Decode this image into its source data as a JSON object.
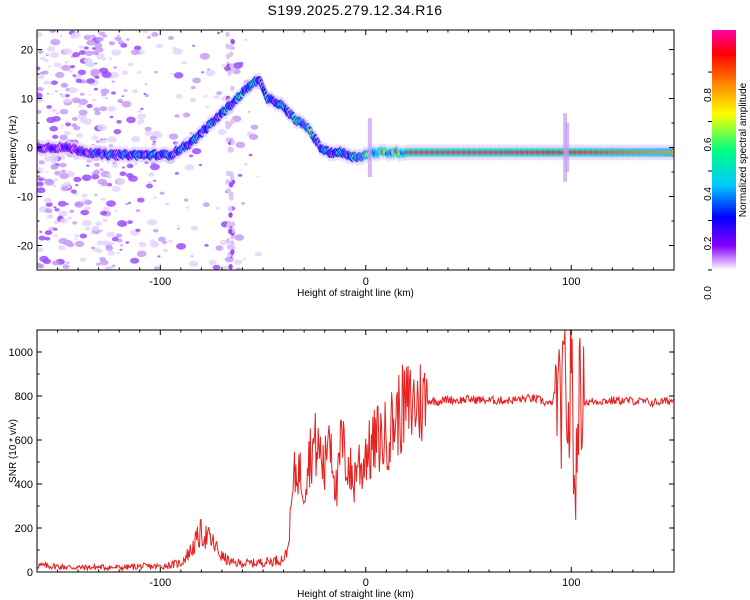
{
  "title": "S199.2025.279.12.34.R16",
  "colors": {
    "snr_line": "#e8201e",
    "spectrum_low": "#e6d9f7",
    "colormap": [
      "#ffffff",
      "#8800ff",
      "#0000ff",
      "#00c8ff",
      "#00ff80",
      "#ffff00",
      "#ff8000",
      "#ff0000",
      "#ff00aa"
    ]
  },
  "chart_data": [
    {
      "type": "heatmap",
      "xlabel": "Height of straight line (km)",
      "ylabel": "Frequency (Hz)",
      "xlim": [
        -160,
        150
      ],
      "ylim": [
        -25,
        24
      ],
      "xticks": [
        -100,
        0,
        100
      ],
      "yticks": [
        20,
        10,
        0,
        -10,
        -20
      ],
      "colorbar": {
        "label": "Normalized spectral amplitude",
        "range": [
          0,
          0.97
        ],
        "ticks": [
          0.0,
          0.2,
          0.4,
          0.6,
          0.8
        ]
      },
      "ridge": {
        "x": [
          -160,
          -145,
          -135,
          -125,
          -115,
          -105,
          -95,
          -85,
          -75,
          -65,
          -58,
          -52,
          -48,
          -42,
          -35,
          -28,
          -22,
          -18,
          -12,
          -5,
          5,
          20,
          60,
          100,
          150
        ],
        "y": [
          0,
          0,
          -1,
          -1.5,
          -1.5,
          -1.5,
          -1.5,
          1,
          5,
          9,
          12,
          14,
          10,
          9,
          6,
          4,
          0,
          -1,
          -1,
          -2,
          -1,
          -1,
          -1,
          -1,
          -1
        ],
        "amplitude": [
          0.2,
          0.25,
          0.3,
          0.4,
          0.4,
          0.45,
          0.4,
          0.45,
          0.45,
          0.5,
          0.55,
          0.5,
          0.45,
          0.5,
          0.55,
          0.6,
          0.5,
          0.45,
          0.5,
          0.55,
          0.8,
          0.95,
          0.95,
          0.9,
          0.75
        ]
      }
    },
    {
      "type": "line",
      "xlabel": "Height of straight line (km)",
      "ylabel": "SNR (10 * v/v)",
      "xlim": [
        -160,
        150
      ],
      "ylim": [
        0,
        1100
      ],
      "xticks": [
        -100,
        0,
        100
      ],
      "yticks": [
        0,
        200,
        400,
        600,
        800,
        1000
      ],
      "series": [
        {
          "x": [
            -160,
            -150,
            -140,
            -130,
            -120,
            -110,
            -100,
            -90,
            -85,
            -80,
            -75,
            -70,
            -65,
            -60,
            -55,
            -50,
            -45,
            -40,
            -38,
            -35,
            -33,
            -30,
            -28,
            -25,
            -22,
            -20,
            -18,
            -16,
            -14,
            -12,
            -10,
            -8,
            -6,
            -4,
            -2,
            0,
            2,
            4,
            6,
            8,
            10,
            12,
            14,
            16,
            18,
            20,
            22,
            25,
            28,
            30,
            35,
            40,
            45,
            50,
            60,
            70,
            80,
            85,
            90,
            93,
            95,
            97,
            99,
            100,
            101,
            102,
            103,
            104,
            106,
            108,
            110,
            120,
            130,
            140,
            150
          ],
          "y": [
            30,
            25,
            20,
            22,
            20,
            25,
            25,
            40,
            100,
            180,
            140,
            70,
            40,
            40,
            40,
            45,
            50,
            60,
            100,
            420,
            480,
            380,
            520,
            580,
            540,
            450,
            700,
            520,
            340,
            610,
            510,
            480,
            390,
            520,
            460,
            560,
            540,
            580,
            610,
            600,
            620,
            650,
            690,
            720,
            740,
            755,
            760,
            770,
            775,
            780,
            775,
            785,
            780,
            785,
            780,
            780,
            790,
            780,
            760,
            830,
            700,
            900,
            600,
            1090,
            520,
            280,
            760,
            800,
            780,
            770,
            775,
            780,
            778,
            770,
            780
          ]
        }
      ]
    }
  ]
}
